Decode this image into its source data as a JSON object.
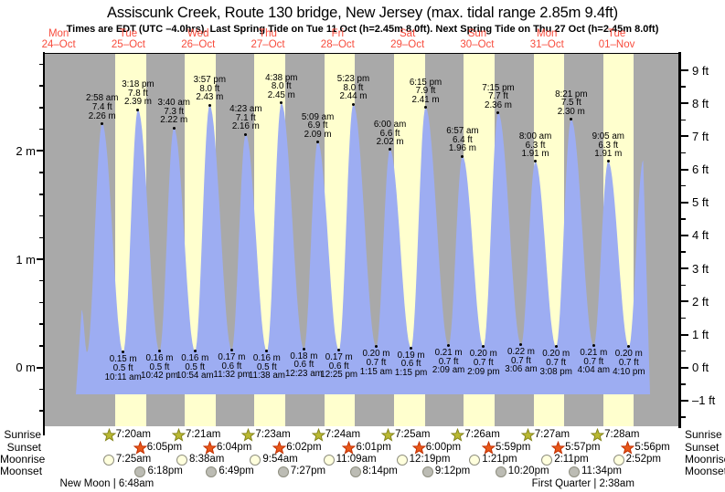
{
  "title": "Assiscunk Creek, Route 130 bridge, New Jersey (max. tidal range 2.85m 9.4ft)",
  "subtitle": "Times are EDT (UTC –4.0hrs). Last Spring Tide on Tue 11 Oct (h=2.45m 8.0ft). Next Spring Tide on Thu 27 Oct (h=2.45m 8.0ft)",
  "colors": {
    "night_bg": "#a9a9a9",
    "day_stripe": "#ffffce",
    "tide_fill": "#9dadf2",
    "day_label_red": "#f84c3d",
    "sunrise_star_fill": "#b9b832",
    "sunrise_star_stroke": "#85851e",
    "sunset_star_fill": "#e8581a",
    "sunset_star_stroke": "#c22f00",
    "moonrise_fill": "#ffffdd",
    "moonset_fill": "#bcbcb4",
    "text": "#000000"
  },
  "days": [
    {
      "weekday": "Mon",
      "date": "24–Oct"
    },
    {
      "weekday": "Tue",
      "date": "25–Oct"
    },
    {
      "weekday": "Wed",
      "date": "26–Oct"
    },
    {
      "weekday": "Thu",
      "date": "27–Oct"
    },
    {
      "weekday": "Fri",
      "date": "28–Oct"
    },
    {
      "weekday": "Sat",
      "date": "29–Oct"
    },
    {
      "weekday": "Sun",
      "date": "30–Oct"
    },
    {
      "weekday": "Mon",
      "date": "31–Oct"
    },
    {
      "weekday": "Tue",
      "date": "01–Nov"
    }
  ],
  "chart_data": {
    "type": "area",
    "title": "Tide height curve",
    "x_axis": {
      "unit": "days",
      "labels_see": "days"
    },
    "y_axis_left": {
      "unit": "m",
      "major_ticks": [
        0,
        1,
        2
      ],
      "minor_step": 0.2,
      "minor_range": [
        -0.4,
        2.8
      ],
      "labels": [
        "0 m",
        "1 m",
        "2 m"
      ]
    },
    "y_axis_right": {
      "unit": "ft",
      "major_ticks": [
        -1,
        0,
        1,
        2,
        3,
        4,
        5,
        6,
        7,
        8,
        9
      ],
      "minor_step": 0.5,
      "minor_range": [
        -1.5,
        9
      ]
    },
    "high_tides": [
      {
        "day": 1,
        "time": "2:58 am",
        "ft": "7.4",
        "m": "2.26"
      },
      {
        "day": 1,
        "time": "3:18 pm",
        "ft": "7.8",
        "m": "2.39"
      },
      {
        "day": 2,
        "time": "3:40 am",
        "ft": "7.3",
        "m": "2.22"
      },
      {
        "day": 2,
        "time": "3:57 pm",
        "ft": "8.0",
        "m": "2.43"
      },
      {
        "day": 3,
        "time": "4:23 am",
        "ft": "7.1",
        "m": "2.16"
      },
      {
        "day": 3,
        "time": "4:38 pm",
        "ft": "8.0",
        "m": "2.45"
      },
      {
        "day": 4,
        "time": "5:09 am",
        "ft": "6.9",
        "m": "2.09"
      },
      {
        "day": 4,
        "time": "5:23 pm",
        "ft": "8.0",
        "m": "2.44"
      },
      {
        "day": 5,
        "time": "6:00 am",
        "ft": "6.6",
        "m": "2.02"
      },
      {
        "day": 5,
        "time": "6:15 pm",
        "ft": "7.9",
        "m": "2.41"
      },
      {
        "day": 6,
        "time": "6:57 am",
        "ft": "6.4",
        "m": "1.96"
      },
      {
        "day": 6,
        "time": "7:15 pm",
        "ft": "7.7",
        "m": "2.36"
      },
      {
        "day": 7,
        "time": "8:00 am",
        "ft": "6.3",
        "m": "1.91"
      },
      {
        "day": 7,
        "time": "8:21 pm",
        "ft": "7.5",
        "m": "2.30"
      },
      {
        "day": 8,
        "time": "9:05 am",
        "ft": "6.3",
        "m": "1.91"
      }
    ],
    "low_tides": [
      {
        "day": 1,
        "time": "10:11 am",
        "ft": "0.5",
        "m": "0.15"
      },
      {
        "day": 1,
        "time": "10:42 pm",
        "ft": "0.5",
        "m": "0.16"
      },
      {
        "day": 2,
        "time": "10:54 am",
        "ft": "0.5",
        "m": "0.16"
      },
      {
        "day": 2,
        "time": "11:32 pm",
        "ft": "0.6",
        "m": "0.17"
      },
      {
        "day": 3,
        "time": "11:38 am",
        "ft": "0.5",
        "m": "0.16"
      },
      {
        "day": 4,
        "time": "12:23 am",
        "ft": "0.6",
        "m": "0.18"
      },
      {
        "day": 4,
        "time": "12:25 pm",
        "ft": "0.6",
        "m": "0.17"
      },
      {
        "day": 5,
        "time": "1:15 am",
        "ft": "0.7",
        "m": "0.20"
      },
      {
        "day": 5,
        "time": "1:15 pm",
        "ft": "0.6",
        "m": "0.19"
      },
      {
        "day": 6,
        "time": "2:09 am",
        "ft": "0.7",
        "m": "0.21"
      },
      {
        "day": 6,
        "time": "2:09 pm",
        "ft": "0.7",
        "m": "0.20"
      },
      {
        "day": 7,
        "time": "3:06 am",
        "ft": "0.7",
        "m": "0.22"
      },
      {
        "day": 7,
        "time": "3:08 pm",
        "ft": "0.7",
        "m": "0.20"
      },
      {
        "day": 8,
        "time": "4:04 am",
        "ft": "0.7",
        "m": "0.21"
      },
      {
        "day": 8,
        "time": "4:10 pm",
        "ft": "0.7",
        "m": "0.20"
      }
    ],
    "curve_boundaries": {
      "start": {
        "day": 0,
        "time": "7:55 pm",
        "m": "0.54"
      },
      "pre_low": {
        "day": 0,
        "time": "9:45 pm",
        "m": "0.15"
      },
      "end": {
        "day": 8,
        "time": "9:07 pm",
        "m": "1.92"
      }
    }
  },
  "sun_moon": {
    "rows": [
      {
        "label": "Sunrise",
        "icon": "sunrise-star",
        "start_day": 1,
        "times": [
          "7:20am",
          "7:21am",
          "7:23am",
          "7:24am",
          "7:25am",
          "7:26am",
          "7:27am",
          "7:28am"
        ]
      },
      {
        "label": "Sunset",
        "icon": "sunset-star",
        "start_day": 1,
        "times": [
          "6:05pm",
          "6:04pm",
          "6:02pm",
          "6:01pm",
          "6:00pm",
          "5:59pm",
          "5:57pm",
          "5:56pm"
        ]
      },
      {
        "label": "Moonrise",
        "icon": "moonrise-circle",
        "start_day": 1,
        "times": [
          "7:25am",
          "8:38am",
          "9:54am",
          "11:09am",
          "12:19pm",
          "1:21pm",
          "2:11pm",
          "2:52pm"
        ]
      },
      {
        "label": "Moonset",
        "icon": "moonset-circle",
        "start_day": 1,
        "times": [
          "6:18pm",
          "6:49pm",
          "7:27pm",
          "8:14pm",
          "9:12pm",
          "10:20pm",
          "11:34pm"
        ]
      }
    ],
    "phases": [
      {
        "name": "New Moon",
        "time": "6:48am",
        "day": 1
      },
      {
        "name": "First Quarter",
        "time": "2:38am",
        "day": 8
      }
    ]
  }
}
